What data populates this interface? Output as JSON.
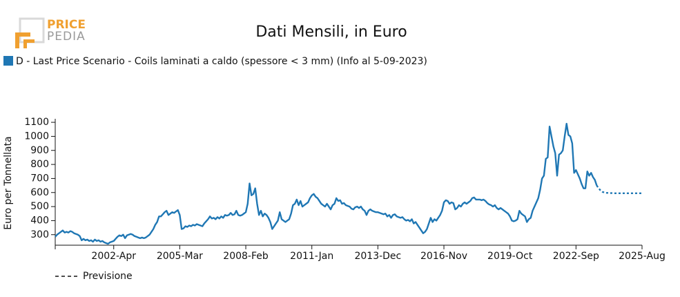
{
  "logo": {
    "line1": "PRICE",
    "line2": "PEDIA"
  },
  "chart_data": {
    "type": "line",
    "title": "Dati Mensili, in Euro",
    "y_label": "Euro per Tonnellata",
    "x": [
      "1999-Sep",
      "1999-Oct",
      "1999-Nov",
      "1999-Dec",
      "2000-Jan",
      "2000-Feb",
      "2000-Mar",
      "2000-Apr",
      "2000-May",
      "2000-Jun",
      "2000-Jul",
      "2000-Aug",
      "2000-Sep",
      "2000-Oct",
      "2000-Nov",
      "2000-Dec",
      "2001-Jan",
      "2001-Feb",
      "2001-Mar",
      "2001-Apr",
      "2001-May",
      "2001-Jun",
      "2001-Jul",
      "2001-Aug",
      "2001-Sep",
      "2001-Oct",
      "2001-Nov",
      "2001-Dec",
      "2002-Jan",
      "2002-Feb",
      "2002-Mar",
      "2002-Apr",
      "2002-May",
      "2002-Jun",
      "2002-Jul",
      "2002-Aug",
      "2002-Sep",
      "2002-Oct",
      "2002-Nov",
      "2002-Dec",
      "2003-Jan",
      "2003-Feb",
      "2003-Mar",
      "2003-Apr",
      "2003-May",
      "2003-Jun",
      "2003-Jul",
      "2003-Aug",
      "2003-Sep",
      "2003-Oct",
      "2003-Nov",
      "2003-Dec",
      "2004-Jan",
      "2004-Feb",
      "2004-Mar",
      "2004-Apr",
      "2004-May",
      "2004-Jun",
      "2004-Jul",
      "2004-Aug",
      "2004-Sep",
      "2004-Oct",
      "2004-Nov",
      "2004-Dec",
      "2005-Jan",
      "2005-Feb",
      "2005-Mar",
      "2005-Apr",
      "2005-May",
      "2005-Jun",
      "2005-Jul",
      "2005-Aug",
      "2005-Sep",
      "2005-Oct",
      "2005-Nov",
      "2005-Dec",
      "2006-Jan",
      "2006-Feb",
      "2006-Mar",
      "2006-Apr",
      "2006-May",
      "2006-Jun",
      "2006-Jul",
      "2006-Aug",
      "2006-Sep",
      "2006-Oct",
      "2006-Nov",
      "2006-Dec",
      "2007-Jan",
      "2007-Feb",
      "2007-Mar",
      "2007-Apr",
      "2007-May",
      "2007-Jun",
      "2007-Jul",
      "2007-Aug",
      "2007-Sep",
      "2007-Oct",
      "2007-Nov",
      "2007-Dec",
      "2008-Jan",
      "2008-Feb",
      "2008-Mar",
      "2008-Apr",
      "2008-May",
      "2008-Jun",
      "2008-Jul",
      "2008-Aug",
      "2008-Sep",
      "2008-Oct",
      "2008-Nov",
      "2008-Dec",
      "2009-Jan",
      "2009-Feb",
      "2009-Mar",
      "2009-Apr",
      "2009-May",
      "2009-Jun",
      "2009-Jul",
      "2009-Aug",
      "2009-Sep",
      "2009-Oct",
      "2009-Nov",
      "2009-Dec",
      "2010-Jan",
      "2010-Feb",
      "2010-Mar",
      "2010-Apr",
      "2010-May",
      "2010-Jun",
      "2010-Jul",
      "2010-Aug",
      "2010-Sep",
      "2010-Oct",
      "2010-Nov",
      "2010-Dec",
      "2011-Jan",
      "2011-Feb",
      "2011-Mar",
      "2011-Apr",
      "2011-May",
      "2011-Jun",
      "2011-Jul",
      "2011-Aug",
      "2011-Sep",
      "2011-Oct",
      "2011-Nov",
      "2011-Dec",
      "2012-Jan",
      "2012-Feb",
      "2012-Mar",
      "2012-Apr",
      "2012-May",
      "2012-Jun",
      "2012-Jul",
      "2012-Aug",
      "2012-Sep",
      "2012-Oct",
      "2012-Nov",
      "2012-Dec",
      "2013-Jan",
      "2013-Feb",
      "2013-Mar",
      "2013-Apr",
      "2013-May",
      "2013-Jun",
      "2013-Jul",
      "2013-Aug",
      "2013-Sep",
      "2013-Oct",
      "2013-Nov",
      "2013-Dec",
      "2014-Jan",
      "2014-Feb",
      "2014-Mar",
      "2014-Apr",
      "2014-May",
      "2014-Jun",
      "2014-Jul",
      "2014-Aug",
      "2014-Sep",
      "2014-Oct",
      "2014-Nov",
      "2014-Dec",
      "2015-Jan",
      "2015-Feb",
      "2015-Mar",
      "2015-Apr",
      "2015-May",
      "2015-Jun",
      "2015-Jul",
      "2015-Aug",
      "2015-Sep",
      "2015-Oct",
      "2015-Nov",
      "2015-Dec",
      "2016-Jan",
      "2016-Feb",
      "2016-Mar",
      "2016-Apr",
      "2016-May",
      "2016-Jun",
      "2016-Jul",
      "2016-Aug",
      "2016-Sep",
      "2016-Oct",
      "2016-Nov",
      "2016-Dec",
      "2017-Jan",
      "2017-Feb",
      "2017-Mar",
      "2017-Apr",
      "2017-May",
      "2017-Jun",
      "2017-Jul",
      "2017-Aug",
      "2017-Sep",
      "2017-Oct",
      "2017-Nov",
      "2017-Dec",
      "2018-Jan",
      "2018-Feb",
      "2018-Mar",
      "2018-Apr",
      "2018-May",
      "2018-Jun",
      "2018-Jul",
      "2018-Aug",
      "2018-Sep",
      "2018-Oct",
      "2018-Nov",
      "2018-Dec",
      "2019-Jan",
      "2019-Feb",
      "2019-Mar",
      "2019-Apr",
      "2019-May",
      "2019-Jun",
      "2019-Jul",
      "2019-Aug",
      "2019-Sep",
      "2019-Oct",
      "2019-Nov",
      "2019-Dec",
      "2020-Jan",
      "2020-Feb",
      "2020-Mar",
      "2020-Apr",
      "2020-May",
      "2020-Jun",
      "2020-Jul",
      "2020-Aug",
      "2020-Sep",
      "2020-Oct",
      "2020-Nov",
      "2020-Dec",
      "2021-Jan",
      "2021-Feb",
      "2021-Mar",
      "2021-Apr",
      "2021-May",
      "2021-Jun",
      "2021-Jul",
      "2021-Aug",
      "2021-Sep",
      "2021-Oct",
      "2021-Nov",
      "2021-Dec",
      "2022-Jan",
      "2022-Feb",
      "2022-Mar",
      "2022-Apr",
      "2022-May",
      "2022-Jun",
      "2022-Jul",
      "2022-Aug",
      "2022-Sep",
      "2022-Oct",
      "2022-Nov",
      "2022-Dec",
      "2023-Jan",
      "2023-Feb",
      "2023-Mar",
      "2023-Apr",
      "2023-May",
      "2023-Jun",
      "2023-Jul",
      "2023-Aug",
      "2023-Sep",
      "2023-Oct",
      "2023-Nov",
      "2023-Dec",
      "2024-Jan",
      "2024-Feb",
      "2024-Mar",
      "2024-Apr",
      "2024-May",
      "2024-Jun",
      "2024-Jul",
      "2024-Aug",
      "2024-Sep",
      "2024-Oct",
      "2024-Nov",
      "2024-Dec",
      "2025-Jan",
      "2025-Feb",
      "2025-Mar",
      "2025-Apr",
      "2025-May",
      "2025-Jun",
      "2025-Jul",
      "2025-Aug"
    ],
    "xticks": [
      "2002-Apr",
      "2005-Mar",
      "2008-Feb",
      "2011-Jan",
      "2013-Dec",
      "2016-Nov",
      "2019-Oct",
      "2022-Sep",
      "2025-Aug"
    ],
    "ylim": [
      225,
      1125
    ],
    "yticks": [
      300,
      400,
      500,
      600,
      700,
      800,
      900,
      1000,
      1100
    ],
    "series": [
      {
        "name": "D - Last Price Scenario - Coils laminati a caldo (spessore < 3 mm) (Info al 5-09-2023)",
        "color": "#1f77b4",
        "dashed": false,
        "values": [
          285,
          300,
          310,
          320,
          330,
          315,
          320,
          315,
          325,
          320,
          310,
          305,
          300,
          290,
          260,
          270,
          260,
          265,
          255,
          260,
          250,
          265,
          255,
          260,
          250,
          255,
          245,
          240,
          235,
          245,
          250,
          255,
          270,
          285,
          295,
          290,
          300,
          275,
          295,
          300,
          305,
          300,
          290,
          285,
          280,
          275,
          280,
          275,
          280,
          290,
          300,
          320,
          340,
          370,
          390,
          430,
          430,
          445,
          460,
          470,
          440,
          450,
          460,
          455,
          465,
          475,
          440,
          340,
          345,
          360,
          355,
          365,
          360,
          370,
          365,
          375,
          370,
          365,
          360,
          380,
          395,
          410,
          430,
          415,
          420,
          410,
          425,
          415,
          430,
          420,
          440,
          435,
          440,
          455,
          440,
          445,
          470,
          440,
          435,
          440,
          450,
          460,
          520,
          665,
          580,
          590,
          630,
          520,
          440,
          470,
          430,
          450,
          440,
          420,
          390,
          340,
          360,
          380,
          400,
          460,
          410,
          400,
          390,
          400,
          410,
          450,
          510,
          520,
          550,
          510,
          540,
          500,
          510,
          520,
          530,
          560,
          580,
          590,
          570,
          560,
          540,
          520,
          510,
          500,
          520,
          500,
          480,
          510,
          520,
          560,
          540,
          545,
          520,
          525,
          510,
          505,
          500,
          485,
          480,
          495,
          500,
          490,
          500,
          480,
          470,
          440,
          470,
          480,
          470,
          465,
          460,
          460,
          455,
          450,
          445,
          450,
          430,
          440,
          420,
          440,
          445,
          430,
          425,
          420,
          425,
          410,
          400,
          405,
          395,
          410,
          380,
          390,
          370,
          350,
          330,
          310,
          320,
          340,
          380,
          420,
          390,
          410,
          400,
          420,
          440,
          470,
          530,
          545,
          540,
          520,
          530,
          525,
          480,
          490,
          510,
          500,
          520,
          530,
          520,
          530,
          540,
          560,
          565,
          550,
          550,
          550,
          545,
          550,
          540,
          525,
          515,
          510,
          500,
          510,
          490,
          480,
          490,
          480,
          470,
          460,
          450,
          430,
          400,
          395,
          400,
          410,
          470,
          450,
          440,
          430,
          390,
          410,
          420,
          470,
          500,
          530,
          560,
          620,
          700,
          720,
          840,
          850,
          1070,
          1000,
          930,
          880,
          720,
          870,
          880,
          900,
          1000,
          1090,
          1010,
          1000,
          950,
          740,
          760,
          730,
          700,
          660,
          630,
          630,
          750,
          720,
          740,
          710,
          690,
          650,
          null,
          null,
          null,
          null,
          null,
          null,
          null,
          null,
          null,
          null,
          null,
          null,
          null,
          null,
          null,
          null,
          null,
          null,
          null,
          null,
          null,
          null,
          null,
          null
        ]
      },
      {
        "name": "Previsione",
        "color": "#1f77b4",
        "dashed": true,
        "values": [
          null,
          null,
          null,
          null,
          null,
          null,
          null,
          null,
          null,
          null,
          null,
          null,
          null,
          null,
          null,
          null,
          null,
          null,
          null,
          null,
          null,
          null,
          null,
          null,
          null,
          null,
          null,
          null,
          null,
          null,
          null,
          null,
          null,
          null,
          null,
          null,
          null,
          null,
          null,
          null,
          null,
          null,
          null,
          null,
          null,
          null,
          null,
          null,
          null,
          null,
          null,
          null,
          null,
          null,
          null,
          null,
          null,
          null,
          null,
          null,
          null,
          null,
          null,
          null,
          null,
          null,
          null,
          null,
          null,
          null,
          null,
          null,
          null,
          null,
          null,
          null,
          null,
          null,
          null,
          null,
          null,
          null,
          null,
          null,
          null,
          null,
          null,
          null,
          null,
          null,
          null,
          null,
          null,
          null,
          null,
          null,
          null,
          null,
          null,
          null,
          null,
          null,
          null,
          null,
          null,
          null,
          null,
          null,
          null,
          null,
          null,
          null,
          null,
          null,
          null,
          null,
          null,
          null,
          null,
          null,
          null,
          null,
          null,
          null,
          null,
          null,
          null,
          null,
          null,
          null,
          null,
          null,
          null,
          null,
          null,
          null,
          null,
          null,
          null,
          null,
          null,
          null,
          null,
          null,
          null,
          null,
          null,
          null,
          null,
          null,
          null,
          null,
          null,
          null,
          null,
          null,
          null,
          null,
          null,
          null,
          null,
          null,
          null,
          null,
          null,
          null,
          null,
          null,
          null,
          null,
          null,
          null,
          null,
          null,
          null,
          null,
          null,
          null,
          null,
          null,
          null,
          null,
          null,
          null,
          null,
          null,
          null,
          null,
          null,
          null,
          null,
          null,
          null,
          null,
          null,
          null,
          null,
          null,
          null,
          null,
          null,
          null,
          null,
          null,
          null,
          null,
          null,
          null,
          null,
          null,
          null,
          null,
          null,
          null,
          null,
          null,
          null,
          null,
          null,
          null,
          null,
          null,
          null,
          null,
          null,
          null,
          null,
          null,
          null,
          null,
          null,
          null,
          null,
          null,
          null,
          null,
          null,
          null,
          null,
          null,
          null,
          null,
          null,
          null,
          null,
          null,
          null,
          null,
          null,
          null,
          null,
          null,
          null,
          null,
          null,
          null,
          null,
          null,
          null,
          null,
          null,
          null,
          null,
          null,
          null,
          null,
          null,
          null,
          null,
          null,
          null,
          null,
          null,
          null,
          null,
          null,
          null,
          null,
          null,
          null,
          null,
          null,
          null,
          null,
          null,
          null,
          null,
          650,
          630,
          615,
          605,
          600,
          598,
          597,
          596,
          596,
          595,
          595,
          595,
          595,
          595,
          595,
          595,
          595,
          595,
          595,
          595,
          595,
          595,
          595,
          595,
          595
        ]
      }
    ]
  }
}
